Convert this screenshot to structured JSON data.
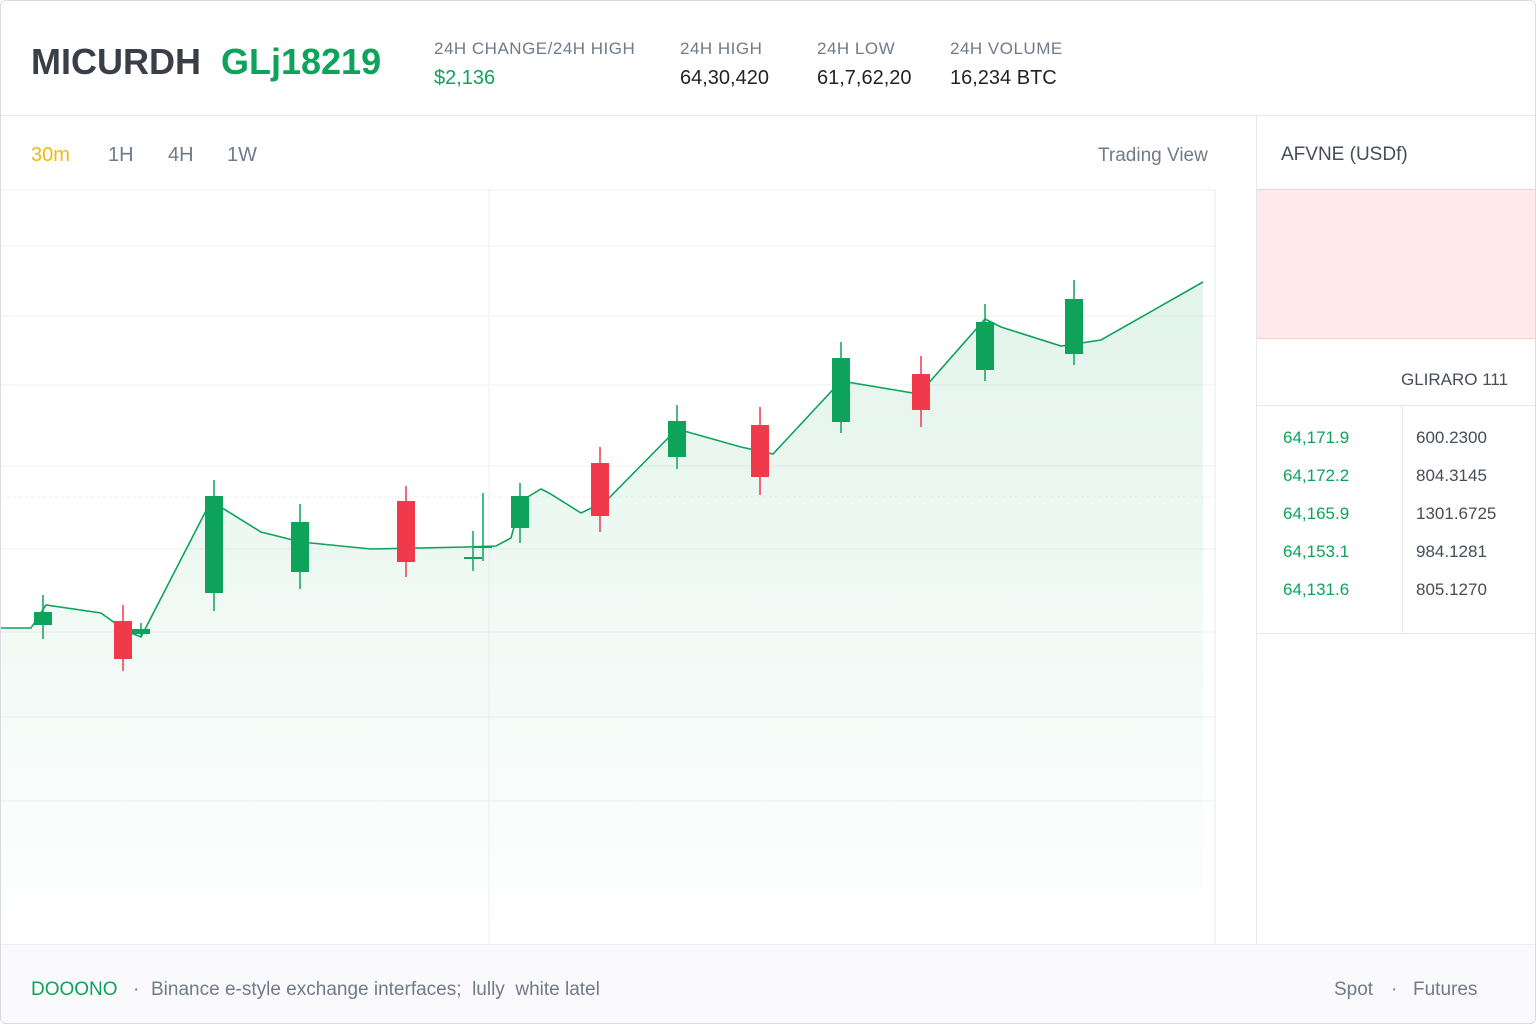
{
  "header": {
    "symbol": "MICURDH",
    "pair": "GLj18219",
    "stats": [
      {
        "label": "24H CHANGE/24H HIGH",
        "value": "$2,136"
      },
      {
        "label": "24H HIGH",
        "value": "64,30,420"
      },
      {
        "label": "24H LOW",
        "value": "61,7,62,20"
      },
      {
        "label": "24H VOLUME",
        "value": "16,234 BTC"
      }
    ]
  },
  "chart_panel": {
    "intervals": [
      "30m",
      "1H",
      "4H",
      "1W"
    ],
    "view": "Trading View"
  },
  "side_panel": {
    "title": "AFVNE (USDf)",
    "subtitle": "GLIRARO 111",
    "rows": [
      [
        "64,171.9",
        "600.2300"
      ],
      [
        "64,172.2",
        "804.3145"
      ],
      [
        "64,165.9",
        "1301.6725"
      ],
      [
        "64,153.1",
        "984.1281"
      ],
      [
        "64,131.6",
        "805.1270"
      ]
    ]
  },
  "footer": {
    "brand": "DOOONO",
    "separator": "·",
    "text": "Binance e-style exchange interfaces;  lully  white latel",
    "links": [
      "Spot",
      "Futures"
    ]
  }
}
